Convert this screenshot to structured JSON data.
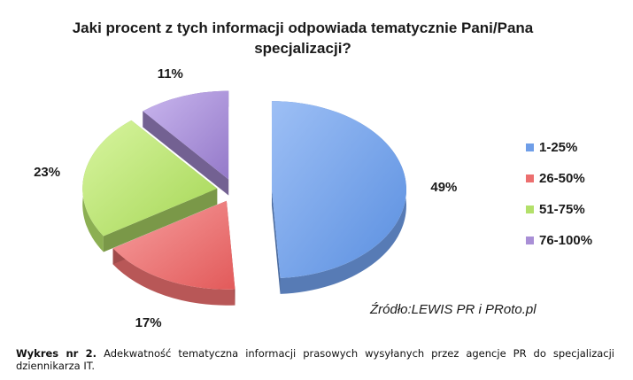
{
  "chart_data": {
    "type": "pie",
    "title_lines": [
      "Jaki procent z tych informacji odpowiada tematycznie Pani/Pana",
      "specjalizacji?"
    ],
    "categories": [
      "1-25%",
      "26-50%",
      "51-75%",
      "76-100%"
    ],
    "values": [
      49,
      17,
      23,
      11
    ],
    "value_labels": [
      "49%",
      "17%",
      "23%",
      "11%"
    ],
    "colors": [
      "#6f9ee8",
      "#ec6f6f",
      "#b3e06a",
      "#a98fd6"
    ],
    "legend_position": "right",
    "style": "3d-exploded"
  },
  "source": "Źródło:LEWIS PR i PRoto.pl",
  "caption": {
    "label": "Wykres nr 2.",
    "text": "Adekwatność tematyczna informacji prasowych wysyłanych przez agencje PR do specjalizacji dziennikarza IT."
  }
}
